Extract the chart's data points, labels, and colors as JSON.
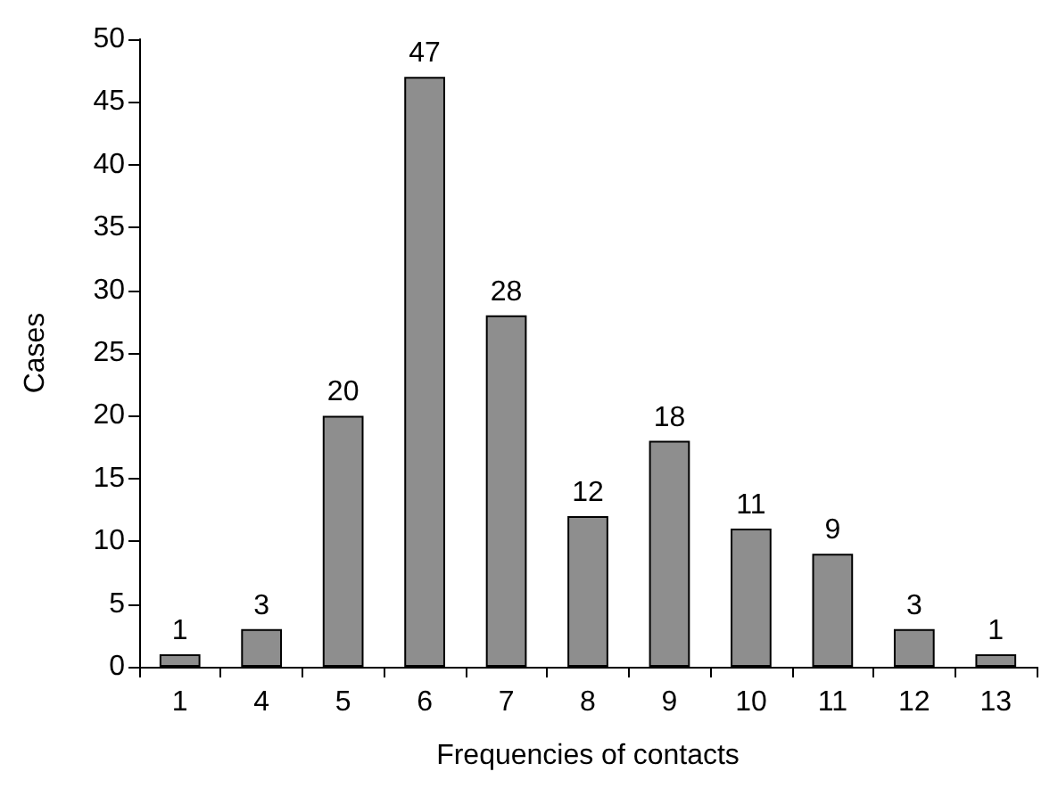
{
  "chart_data": {
    "type": "bar",
    "xlabel": "Frequencies of contacts",
    "ylabel": "Cases",
    "categories": [
      "1",
      "4",
      "5",
      "6",
      "7",
      "8",
      "9",
      "10",
      "11",
      "12",
      "13"
    ],
    "values": [
      1,
      3,
      20,
      47,
      28,
      12,
      18,
      11,
      9,
      3,
      1
    ],
    "color": "#8e8e8e",
    "ylim": [
      0,
      50
    ],
    "yticks": [
      0,
      5,
      10,
      15,
      20,
      25,
      30,
      35,
      40,
      45,
      50
    ],
    "grid": false,
    "data_labels": true
  }
}
